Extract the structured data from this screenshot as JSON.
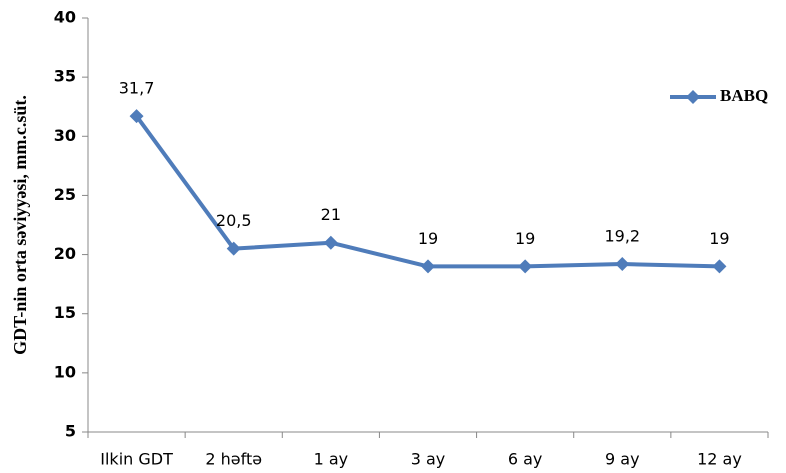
{
  "chart_data": {
    "type": "line",
    "y_label": "GDT-nin orta səviyyəsi, mm.c.süt.",
    "categories": [
      "Ilkin GDT",
      "2 həftə",
      "1 ay",
      "3 ay",
      "6 ay",
      "9 ay",
      "12 ay"
    ],
    "series": [
      {
        "name": "BABQ",
        "color": "#4f7cba",
        "values": [
          31.7,
          20.5,
          21,
          19,
          19,
          19.2,
          19
        ],
        "value_labels": [
          "31,7",
          "20,5",
          "21",
          "19",
          "19",
          "19,2",
          "19"
        ]
      }
    ],
    "ylim": [
      5,
      40
    ],
    "yticks": [
      5,
      10,
      15,
      20,
      25,
      30,
      35,
      40
    ],
    "legend": "right"
  }
}
